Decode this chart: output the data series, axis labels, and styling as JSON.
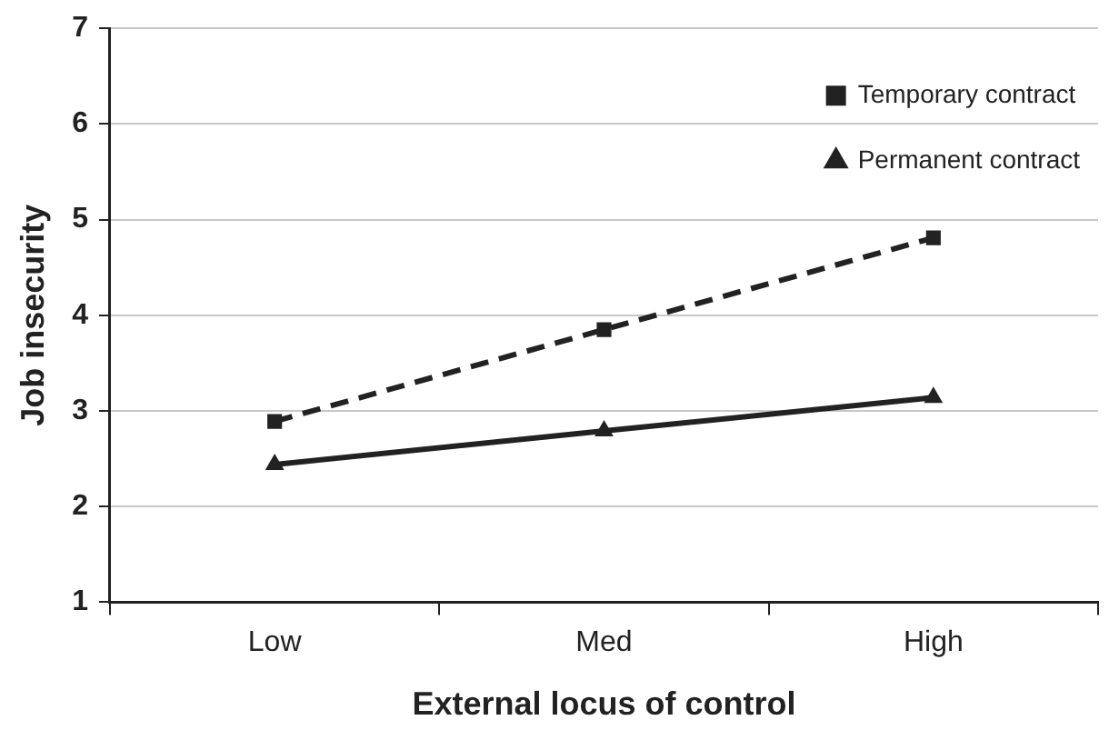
{
  "chart_data": {
    "type": "line",
    "xlabel": "External locus of control",
    "ylabel": "Job insecurity",
    "categories": [
      "Low",
      "Med",
      "High"
    ],
    "series": [
      {
        "name": "Temporary contract",
        "color": "#222222",
        "values": [
          2.89,
          3.85,
          4.81
        ],
        "marker": "square",
        "line_style": "dashed"
      },
      {
        "name": "Permanent contract",
        "color": "#222222",
        "values": [
          2.44,
          2.79,
          3.14
        ],
        "marker": "triangle",
        "line_style": "solid"
      }
    ],
    "ylim": [
      1,
      7
    ],
    "yticks": [
      1,
      2,
      3,
      4,
      5,
      6,
      7
    ],
    "grid": "y",
    "legend": "top right"
  }
}
